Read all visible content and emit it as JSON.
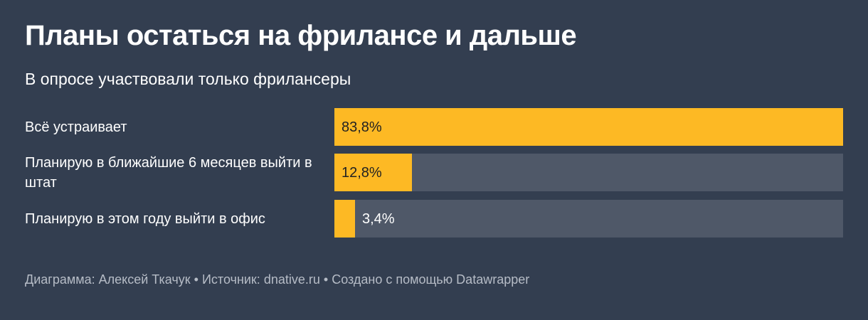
{
  "title": "Планы остаться на фрилансе и дальше",
  "subtitle": "В опросе участвовали только фрилансеры",
  "footer": {
    "author": "Диаграмма: Алексей Ткачук",
    "separator": "•",
    "source": "Источник: dnative.ru",
    "credit": "Создано с помощью Datawrapper"
  },
  "colors": {
    "background": "#333e50",
    "bar": "#fdb924",
    "track": "#4f5868"
  },
  "chart_data": {
    "type": "bar",
    "orientation": "horizontal",
    "categories": [
      "Всё устраивает",
      "Планирую в ближайшие 6 месяцев выйти в штат",
      "Планирую в этом году выйти в офис"
    ],
    "values": [
      83.8,
      12.8,
      3.4
    ],
    "labels": [
      "83,8%",
      "12,8%",
      "3,4%"
    ],
    "xlim": [
      0,
      83.8
    ],
    "grid": false
  }
}
